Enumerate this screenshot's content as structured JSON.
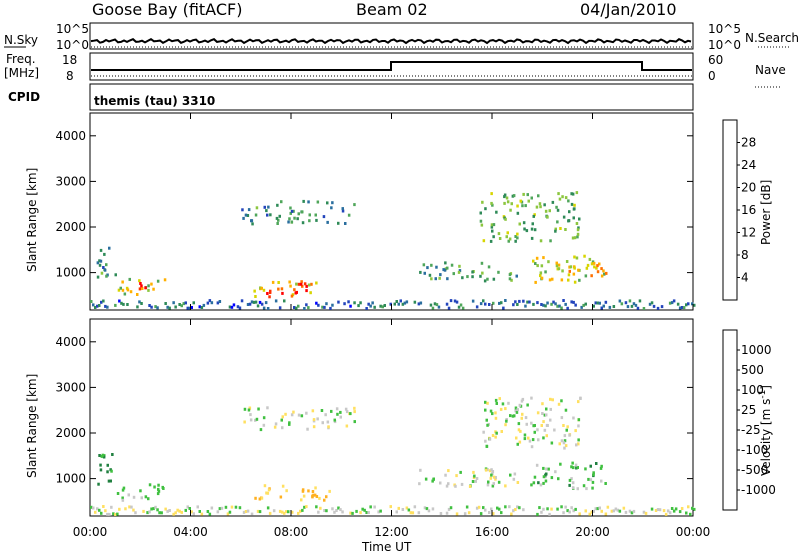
{
  "header": {
    "site": "Goose Bay (fitACF)",
    "beam": "Beam 02",
    "date": "04/Jan/2010"
  },
  "strips": {
    "nsky_label": "N.Sky",
    "nsky_ticks": [
      "10^5",
      "10^0"
    ],
    "nsearch_label": "N.Search",
    "nsearch_ticks": [
      "10^5",
      "10^0"
    ],
    "freq_label": "Freq.",
    "freq_unit": "[MHz]",
    "freq_ticks": [
      "18",
      "8"
    ],
    "nave_label": "Nave",
    "nave_ticks": [
      "60",
      "0"
    ],
    "cpid_label": "CPID",
    "cpid_value": "themis (tau) 3310"
  },
  "chart_data": [
    {
      "type": "heatmap",
      "name": "power",
      "ylabel": "Slant Range [km]",
      "ylim": [
        180,
        4500
      ],
      "yticks": [
        "1000",
        "2000",
        "3000",
        "4000"
      ],
      "xticks": [
        "00:00",
        "04:00",
        "08:00",
        "12:00",
        "16:00",
        "20:00",
        "00:00"
      ],
      "colorbar": {
        "label": "Power [dB]",
        "ticks": [
          "28",
          "24",
          "20",
          "16",
          "12",
          "8",
          "4"
        ],
        "colors": [
          "#0000ff",
          "#2244bb",
          "#2a6e9e",
          "#2e8a57",
          "#4fa65a",
          "#8cc63f",
          "#d7d500",
          "#ffb000",
          "#ff7000",
          "#ff3000",
          "#ff0000"
        ]
      },
      "echo_regions": [
        {
          "t0": 0.2,
          "t1": 1.0,
          "r0": 900,
          "r1": 1600,
          "level": 10
        },
        {
          "t0": 1.0,
          "t1": 3.0,
          "r0": 550,
          "r1": 900,
          "level": 18
        },
        {
          "t0": 1.5,
          "t1": 2.5,
          "r0": 600,
          "r1": 800,
          "level": 26
        },
        {
          "t0": 6.0,
          "t1": 10.5,
          "r0": 2100,
          "r1": 2600,
          "level": 10
        },
        {
          "t0": 6.5,
          "t1": 9.0,
          "r0": 500,
          "r1": 900,
          "level": 22
        },
        {
          "t0": 7.0,
          "t1": 8.8,
          "r0": 550,
          "r1": 800,
          "level": 28
        },
        {
          "t0": 13.0,
          "t1": 17.0,
          "r0": 850,
          "r1": 1250,
          "level": 12
        },
        {
          "t0": 15.5,
          "t1": 19.5,
          "r0": 1700,
          "r1": 2800,
          "level": 14
        },
        {
          "t0": 17.5,
          "t1": 20.5,
          "r0": 800,
          "r1": 1400,
          "level": 18
        },
        {
          "t0": 19.0,
          "t1": 20.5,
          "r0": 950,
          "r1": 1250,
          "level": 24
        }
      ]
    },
    {
      "type": "heatmap",
      "name": "velocity",
      "ylabel": "Slant Range [km]",
      "ylim": [
        180,
        4500
      ],
      "yticks": [
        "1000",
        "2000",
        "3000",
        "4000"
      ],
      "xticks": [
        "00:00",
        "04:00",
        "08:00",
        "12:00",
        "16:00",
        "20:00",
        "00:00"
      ],
      "xlabel": "Time UT",
      "colorbar": {
        "label": "Velocity [m s",
        "label_sup": "-1",
        "label_end": "]",
        "ticks": [
          "1000",
          "500",
          "100",
          "25",
          "-25",
          "-100",
          "-500",
          "-1000"
        ],
        "colors": [
          "#1010c0",
          "#2060a0",
          "#208040",
          "#40c040",
          "#c8c8c8",
          "#ffe060",
          "#ffb020",
          "#ff7000",
          "#ff0000"
        ]
      },
      "echo_regions": [
        {
          "t0": 0.2,
          "t1": 1.0,
          "r0": 900,
          "r1": 1600,
          "v": 100
        },
        {
          "t0": 1.0,
          "t1": 3.0,
          "r0": 550,
          "r1": 900,
          "v": 40
        },
        {
          "t0": 6.0,
          "t1": 10.5,
          "r0": 2100,
          "r1": 2600,
          "v": 0
        },
        {
          "t0": 6.5,
          "t1": 9.5,
          "r0": 550,
          "r1": 900,
          "v": -120
        },
        {
          "t0": 13.0,
          "t1": 17.0,
          "r0": 850,
          "r1": 1250,
          "v": 0
        },
        {
          "t0": 15.5,
          "t1": 19.5,
          "r0": 1700,
          "r1": 2800,
          "v": 0
        },
        {
          "t0": 17.5,
          "t1": 20.5,
          "r0": 800,
          "r1": 1400,
          "v": 60
        }
      ]
    }
  ]
}
